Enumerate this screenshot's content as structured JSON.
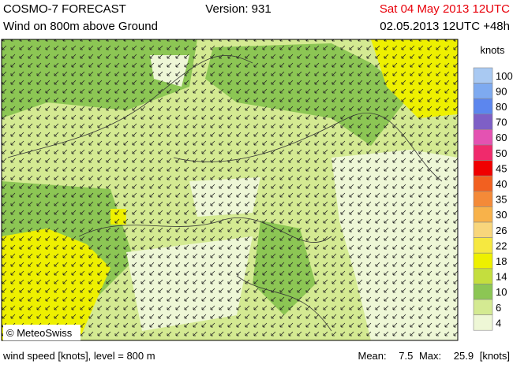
{
  "header": {
    "title": "COSMO-7 FORECAST",
    "version": "Version: 931",
    "valid": "Sat 04 May 2013 12UTC",
    "subtitle": "Wind on 800m above Ground",
    "run": "02.05.2013 12UTC +48h"
  },
  "legend": {
    "unit": "knots",
    "levels": [
      {
        "value": 100,
        "color": "#a9c9f2"
      },
      {
        "value": 90,
        "color": "#7eaaf0"
      },
      {
        "value": 80,
        "color": "#5c86ee"
      },
      {
        "value": 70,
        "color": "#7e5fc6"
      },
      {
        "value": 60,
        "color": "#e452b2"
      },
      {
        "value": 50,
        "color": "#f02a6c"
      },
      {
        "value": 45,
        "color": "#f00000"
      },
      {
        "value": 40,
        "color": "#f26020"
      },
      {
        "value": 35,
        "color": "#f48a38"
      },
      {
        "value": 30,
        "color": "#f8b24a"
      },
      {
        "value": 26,
        "color": "#f8d67c"
      },
      {
        "value": 22,
        "color": "#f6e840"
      },
      {
        "value": 18,
        "color": "#eef000"
      },
      {
        "value": 14,
        "color": "#c4de3e"
      },
      {
        "value": 10,
        "color": "#8cc654"
      },
      {
        "value": 6,
        "color": "#d4ea92"
      },
      {
        "value": 4,
        "color": "#eef7d6"
      }
    ]
  },
  "copyright": "© MeteoSwiss",
  "footer": {
    "left": "wind speed [knots], level = 800 m",
    "mean_label": "Mean:",
    "mean": 7.5,
    "max_label": "Max:",
    "max": 25.9,
    "unit": "[knots]"
  }
}
